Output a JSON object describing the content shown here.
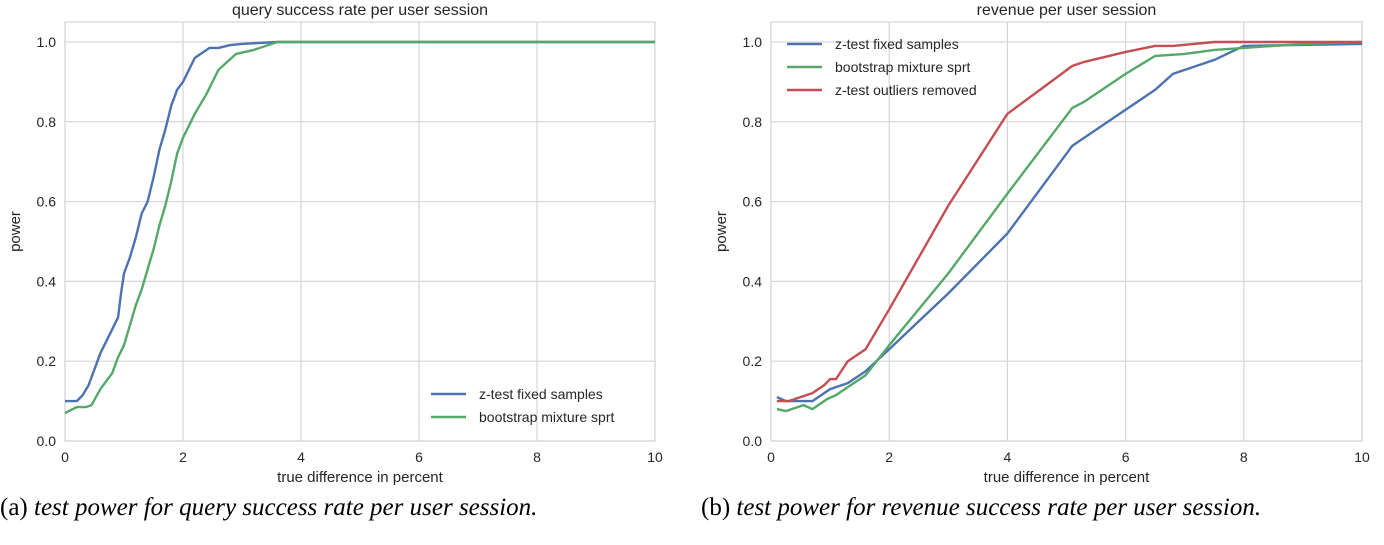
{
  "colors": {
    "blue": "#4c72b0",
    "green": "#55a868",
    "red": "#c44e52",
    "grid": "#d6d6d6"
  },
  "chart_data": [
    {
      "type": "line",
      "title": "query success rate per user session",
      "xlabel": "true difference in percent",
      "ylabel": "power",
      "xlim": [
        0,
        10
      ],
      "ylim": [
        0,
        1.05
      ],
      "xticks": [
        "0",
        "2",
        "4",
        "6",
        "8",
        "10"
      ],
      "yticks": [
        "0.0",
        "0.2",
        "0.4",
        "0.6",
        "0.8",
        "1.0"
      ],
      "grid": true,
      "legend_position": "lower-right",
      "series": [
        {
          "name": "z-test fixed samples",
          "color": "#4c72b0",
          "x": [
            0,
            0.2,
            0.3,
            0.4,
            0.5,
            0.6,
            0.7,
            0.8,
            0.9,
            0.95,
            1.0,
            1.1,
            1.2,
            1.3,
            1.4,
            1.5,
            1.6,
            1.7,
            1.8,
            1.9,
            2.0,
            2.1,
            2.2,
            2.3,
            2.45,
            2.6,
            2.8,
            3.0,
            3.6,
            10
          ],
          "y": [
            0.1,
            0.1,
            0.115,
            0.14,
            0.18,
            0.22,
            0.25,
            0.28,
            0.31,
            0.37,
            0.42,
            0.46,
            0.51,
            0.57,
            0.6,
            0.66,
            0.73,
            0.78,
            0.84,
            0.88,
            0.9,
            0.93,
            0.96,
            0.97,
            0.985,
            0.985,
            0.992,
            0.995,
            1.0,
            1.0
          ]
        },
        {
          "name": "bootstrap mixture sprt",
          "color": "#55a868",
          "x": [
            0,
            0.2,
            0.35,
            0.45,
            0.6,
            0.7,
            0.8,
            0.9,
            1.0,
            1.1,
            1.2,
            1.3,
            1.4,
            1.5,
            1.6,
            1.7,
            1.8,
            1.9,
            2.0,
            2.1,
            2.2,
            2.4,
            2.6,
            2.9,
            3.2,
            3.6,
            10
          ],
          "y": [
            0.07,
            0.085,
            0.085,
            0.09,
            0.13,
            0.15,
            0.17,
            0.21,
            0.24,
            0.29,
            0.34,
            0.38,
            0.43,
            0.48,
            0.54,
            0.59,
            0.65,
            0.72,
            0.76,
            0.79,
            0.82,
            0.87,
            0.93,
            0.97,
            0.98,
            1.0,
            1.0
          ]
        }
      ]
    },
    {
      "type": "line",
      "title": "revenue per user session",
      "xlabel": "true difference in percent",
      "ylabel": "power",
      "xlim": [
        0,
        10
      ],
      "ylim": [
        0,
        1.05
      ],
      "xticks": [
        "0",
        "2",
        "4",
        "6",
        "8",
        "10"
      ],
      "yticks": [
        "0.0",
        "0.2",
        "0.4",
        "0.6",
        "0.8",
        "1.0"
      ],
      "grid": true,
      "legend_position": "upper-left",
      "series": [
        {
          "name": "z-test fixed samples",
          "color": "#4c72b0",
          "x": [
            0.1,
            0.25,
            0.5,
            0.7,
            0.9,
            1.0,
            1.1,
            1.3,
            1.6,
            2,
            3,
            4,
            5.1,
            5.3,
            6,
            6.5,
            6.8,
            7.5,
            8,
            10
          ],
          "y": [
            0.11,
            0.1,
            0.1,
            0.1,
            0.12,
            0.13,
            0.135,
            0.145,
            0.175,
            0.23,
            0.37,
            0.52,
            0.74,
            0.76,
            0.83,
            0.88,
            0.92,
            0.955,
            0.99,
            0.995
          ]
        },
        {
          "name": "bootstrap mixture sprt",
          "color": "#55a868",
          "x": [
            0.1,
            0.25,
            0.55,
            0.7,
            0.95,
            1.1,
            1.3,
            1.6,
            2,
            3,
            4,
            5.1,
            5.3,
            6,
            6.5,
            7,
            7.5,
            8,
            9,
            10
          ],
          "y": [
            0.08,
            0.075,
            0.09,
            0.08,
            0.105,
            0.115,
            0.135,
            0.165,
            0.24,
            0.42,
            0.62,
            0.835,
            0.85,
            0.92,
            0.965,
            0.97,
            0.98,
            0.985,
            0.995,
            1.0
          ]
        },
        {
          "name": "z-test outliers removed",
          "color": "#c44e52",
          "x": [
            0.1,
            0.3,
            0.5,
            0.7,
            0.9,
            1.0,
            1.1,
            1.3,
            1.6,
            2,
            3,
            4,
            5.1,
            5.3,
            6,
            6.5,
            6.8,
            7.5,
            10
          ],
          "y": [
            0.1,
            0.1,
            0.11,
            0.12,
            0.14,
            0.155,
            0.155,
            0.2,
            0.23,
            0.33,
            0.59,
            0.82,
            0.94,
            0.95,
            0.975,
            0.99,
            0.99,
            1.0,
            1.0
          ]
        }
      ]
    }
  ],
  "captions": [
    {
      "label": "(a)",
      "text": "test power for query success rate per user session."
    },
    {
      "label": "(b)",
      "text": "test power for revenue success rate per user session."
    }
  ]
}
